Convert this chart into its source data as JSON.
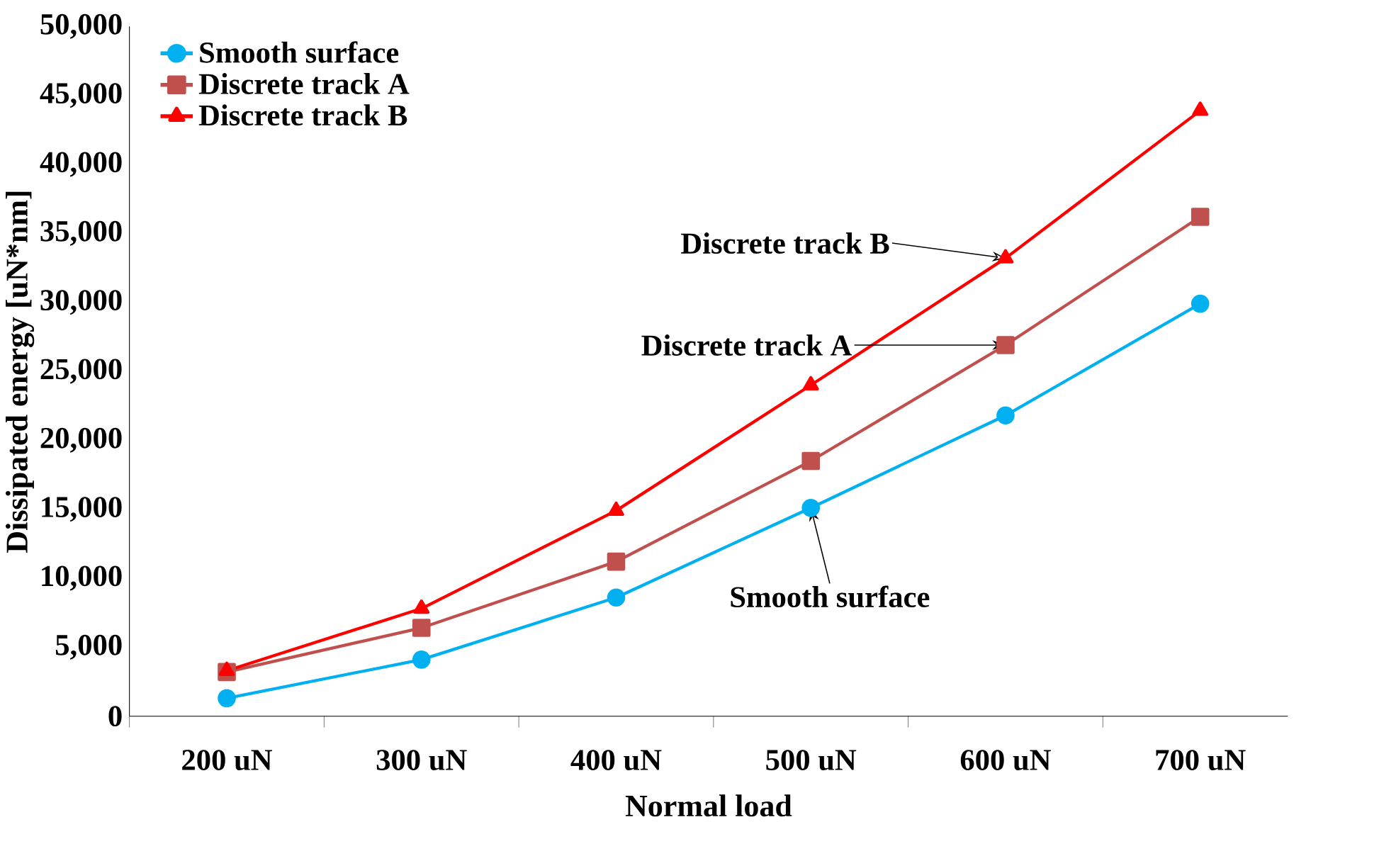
{
  "chart_data": {
    "type": "line",
    "xlabel": "Normal load",
    "ylabel": "Dissipated energy [uN*nm]",
    "categories": [
      "200 uN",
      "300 uN",
      "400 uN",
      "500 uN",
      "600 uN",
      "700 uN"
    ],
    "series": [
      {
        "name": "Smooth surface",
        "color": "#00b0f0",
        "marker": "circle",
        "values": [
          1300,
          4100,
          8600,
          15100,
          21800,
          29900
        ]
      },
      {
        "name": "Discrete track A",
        "color": "#c0504d",
        "marker": "square",
        "values": [
          3200,
          6400,
          11200,
          18500,
          26900,
          36200
        ]
      },
      {
        "name": "Discrete track B",
        "color": "#ff0000",
        "marker": "triangle",
        "values": [
          3300,
          7800,
          14900,
          24000,
          33200,
          43900
        ]
      }
    ],
    "ylim": [
      0,
      50000
    ],
    "yticks": [
      0,
      {
        "value": 5000,
        "label": "5,000"
      },
      {
        "value": 10000,
        "label": "10,000"
      },
      {
        "value": 15000,
        "label": "15,000"
      },
      {
        "value": 20000,
        "label": "20,000"
      },
      {
        "value": 25000,
        "label": "25,000"
      },
      {
        "value": 30000,
        "label": "30,000"
      },
      {
        "value": 35000,
        "label": "35,000"
      },
      {
        "value": 40000,
        "label": "40,000"
      },
      {
        "value": 45000,
        "label": "45,000"
      },
      {
        "value": 50000,
        "label": "50,000"
      }
    ],
    "grid": false,
    "legend": "top left",
    "annotations": [
      {
        "text": "Discrete track B",
        "x": "600 uN",
        "y": 33200
      },
      {
        "text": "Discrete track A",
        "x": "600 uN",
        "y": 26900
      },
      {
        "text": "Smooth surface",
        "x": "500 uN",
        "y": 15100
      }
    ]
  }
}
